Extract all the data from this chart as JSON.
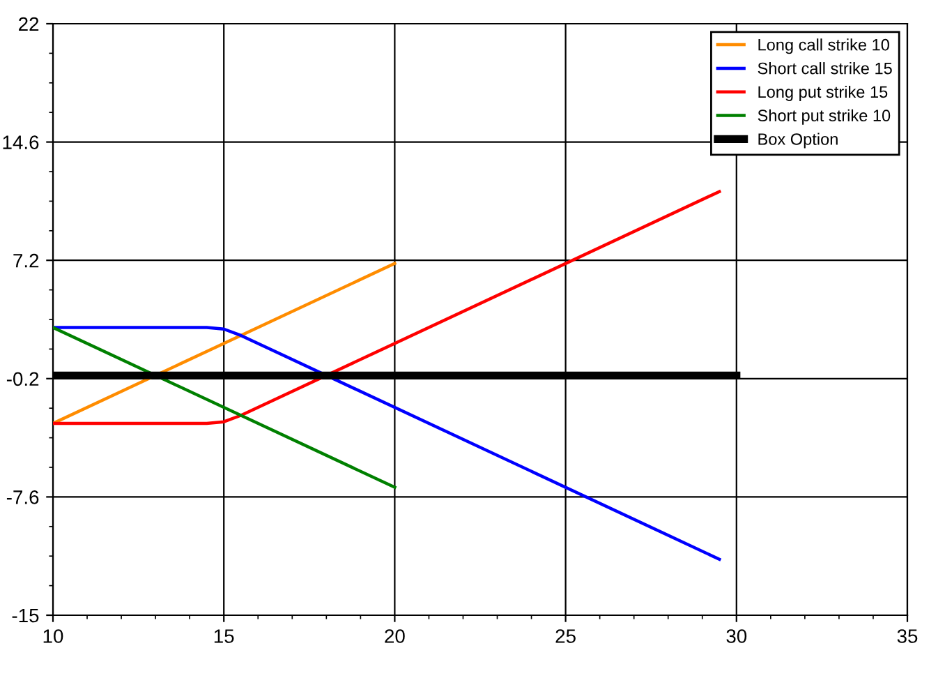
{
  "chart_data": {
    "type": "line",
    "xlim": [
      10,
      35
    ],
    "xticks": [
      10,
      15,
      20,
      25,
      30,
      35
    ],
    "ylim": [
      -15,
      22
    ],
    "yticks": [
      -15,
      -7.6,
      -0.2,
      7.2,
      14.6,
      22
    ],
    "grid": true,
    "legend": "top right",
    "marker": "none",
    "line_style": "solid",
    "series": [
      {
        "name": "Long call strike 10",
        "color": "#ff8c00",
        "x": [
          10,
          20
        ],
        "values": [
          -3,
          7
        ]
      },
      {
        "name": "Short call strike 15",
        "color": "#0000ff",
        "x": [
          10,
          14.5,
          15,
          15.5,
          29.5
        ],
        "values": [
          3,
          3,
          2.9,
          2.5,
          -11.5
        ]
      },
      {
        "name": "Long put strike 15",
        "color": "#ff0000",
        "x": [
          10,
          14.5,
          15,
          15.5,
          29.5
        ],
        "values": [
          -3,
          -3,
          -2.9,
          -2.5,
          11.5
        ]
      },
      {
        "name": "Short put strike 10",
        "color": "#008000",
        "x": [
          10,
          20
        ],
        "values": [
          3,
          -7
        ]
      },
      {
        "name": "Box Option",
        "color": "#000000",
        "x": [
          10,
          30
        ],
        "values": [
          0,
          0
        ]
      }
    ]
  }
}
